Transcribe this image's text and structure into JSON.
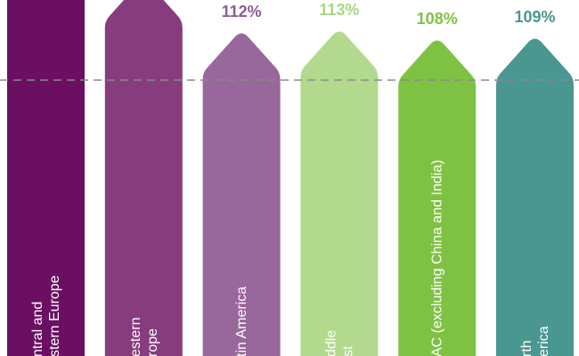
{
  "chart_data": {
    "type": "arrow-bar",
    "categories": [
      [
        "ntral and",
        "stern Europe"
      ],
      [
        "estern",
        "rope"
      ],
      [
        "tin America"
      ],
      [
        "ddle",
        "st"
      ],
      [
        "AC (excluding China and India)"
      ],
      [
        "rth",
        "erica"
      ]
    ],
    "values": [
      null,
      null,
      112,
      113,
      108,
      109
    ],
    "value_labels": [
      null,
      null,
      "112%",
      "113%",
      "108%",
      "109%"
    ],
    "colors": [
      "#6b0f62",
      "#873c7e",
      "#98679c",
      "#b2d98d",
      "#7fc243",
      "#4a9690"
    ],
    "label_colors": [
      null,
      null,
      "#8d5a97",
      "#a9d585",
      "#7fc243",
      "#4a9690"
    ],
    "ylim": [
      -70,
      130
    ]
  }
}
